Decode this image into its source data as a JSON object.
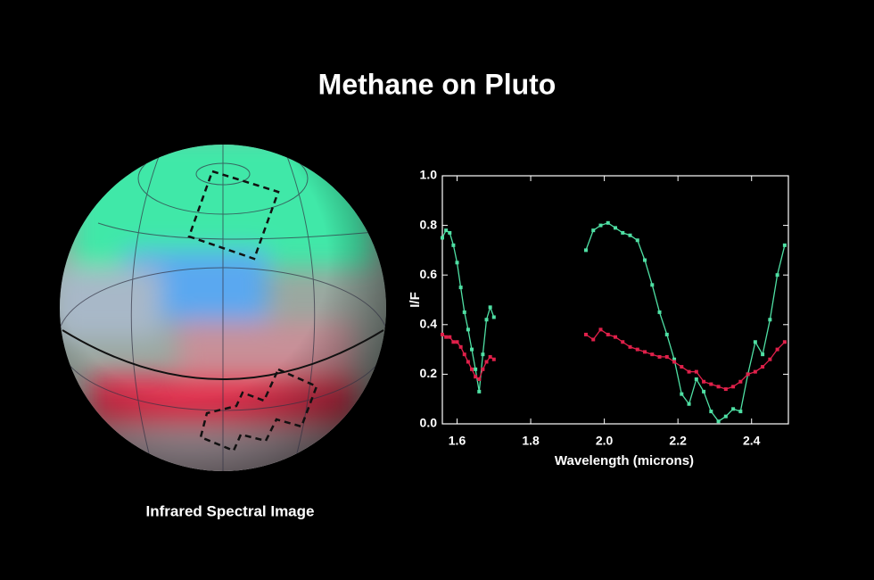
{
  "title": "Methane on Pluto",
  "image_caption": "Infrared Spectral Image",
  "chart_data": {
    "type": "line",
    "x_label": "Wavelength (microns)",
    "y_label": "I/F",
    "x": [
      1.56,
      1.57,
      1.58,
      1.59,
      1.6,
      1.61,
      1.62,
      1.63,
      1.64,
      1.65,
      1.66,
      1.67,
      1.68,
      1.69,
      1.7,
      1.8,
      1.95,
      1.97,
      1.99,
      2.01,
      2.03,
      2.05,
      2.07,
      2.09,
      2.11,
      2.13,
      2.15,
      2.17,
      2.19,
      2.21,
      2.23,
      2.25,
      2.27,
      2.29,
      2.31,
      2.33,
      2.35,
      2.37,
      2.39,
      2.41,
      2.43,
      2.45,
      2.47,
      2.49
    ],
    "series": [
      {
        "color": "#4fe0a4",
        "values": [
          0.75,
          0.78,
          0.77,
          0.72,
          0.65,
          0.55,
          0.45,
          0.38,
          0.3,
          0.22,
          0.13,
          0.28,
          0.42,
          0.47,
          0.43,
          null,
          0.7,
          0.78,
          0.8,
          0.81,
          0.79,
          0.77,
          0.76,
          0.74,
          0.66,
          0.56,
          0.45,
          0.36,
          0.26,
          0.12,
          0.08,
          0.18,
          0.13,
          0.05,
          0.01,
          0.03,
          0.06,
          0.05,
          0.2,
          0.33,
          0.28,
          0.42,
          0.6,
          0.72
        ]
      },
      {
        "color": "#e0204a",
        "values": [
          0.36,
          0.35,
          0.35,
          0.33,
          0.33,
          0.31,
          0.28,
          0.25,
          0.22,
          0.19,
          0.18,
          0.22,
          0.25,
          0.27,
          0.26,
          null,
          0.36,
          0.34,
          0.38,
          0.36,
          0.35,
          0.33,
          0.31,
          0.3,
          0.29,
          0.28,
          0.27,
          0.27,
          0.25,
          0.23,
          0.21,
          0.21,
          0.17,
          0.16,
          0.15,
          0.14,
          0.15,
          0.17,
          0.2,
          0.21,
          0.23,
          0.26,
          0.3,
          0.33
        ]
      }
    ],
    "xlim": [
      1.56,
      2.5
    ],
    "xticks": [
      1.6,
      1.8,
      {
        "value": 2.0,
        "label": "2.0"
      },
      2.2,
      2.4
    ],
    "ylim": [
      0,
      1
    ],
    "yticks": [
      {
        "value": 0,
        "label": "0.0"
      },
      0.2,
      0.4,
      0.6,
      0.8,
      {
        "value": 1,
        "label": "1.0"
      }
    ]
  }
}
